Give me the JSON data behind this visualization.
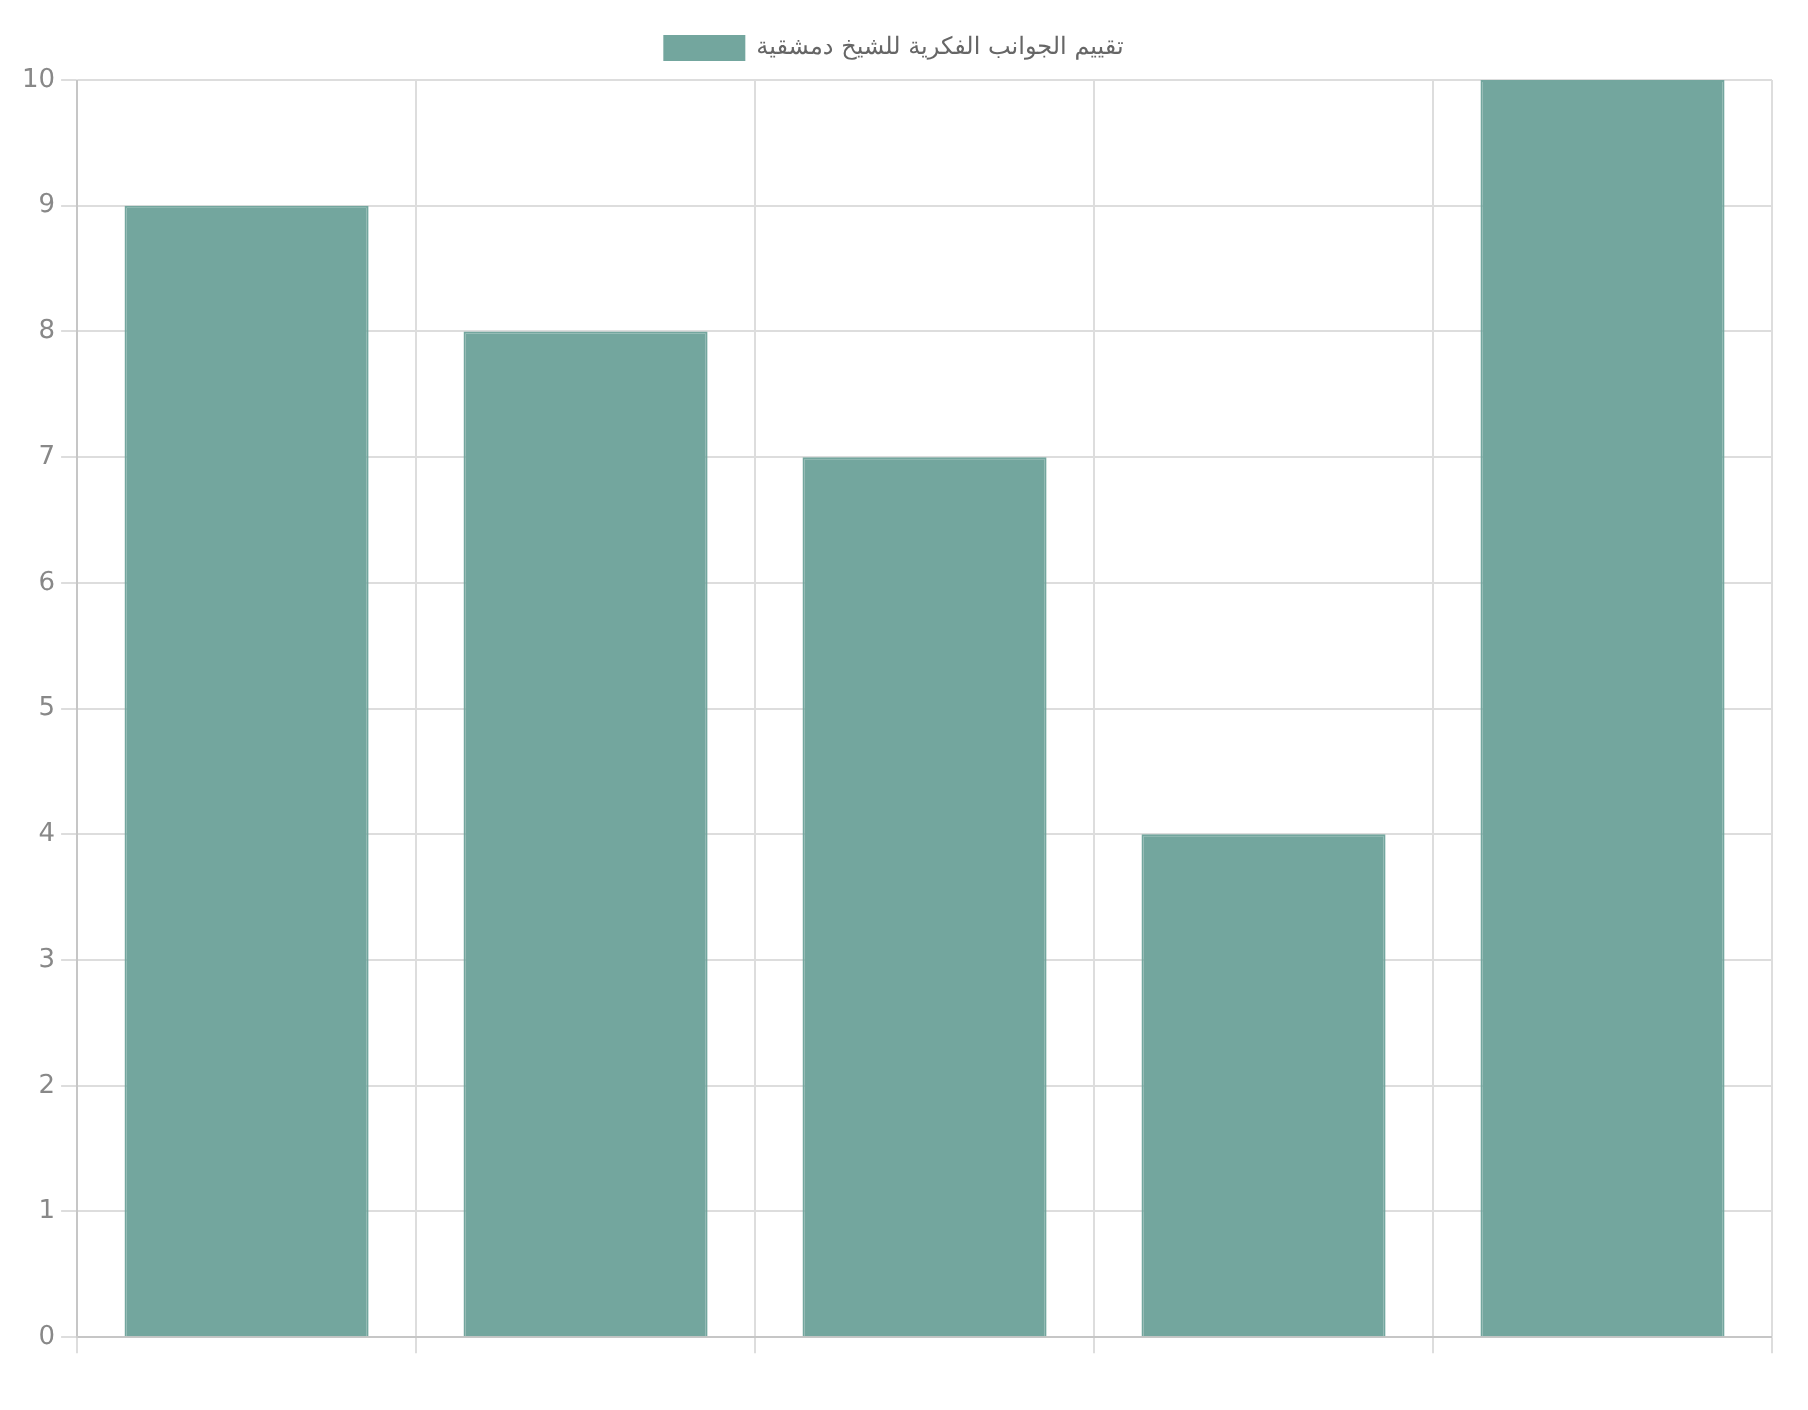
{
  "chart_data": {
    "type": "bar",
    "categories": [
      null,
      null,
      null,
      null,
      null
    ],
    "series": [
      {
        "name": "تقييم الجوانب الفكرية للشيخ دمشقية",
        "color": "#73a69e",
        "values": [
          9,
          8,
          7,
          4,
          10
        ]
      }
    ],
    "ylim": [
      0,
      10
    ],
    "yticks": [
      0,
      1,
      2,
      3,
      4,
      5,
      6,
      7,
      8,
      9,
      10
    ],
    "grid": true,
    "legend": "top"
  }
}
